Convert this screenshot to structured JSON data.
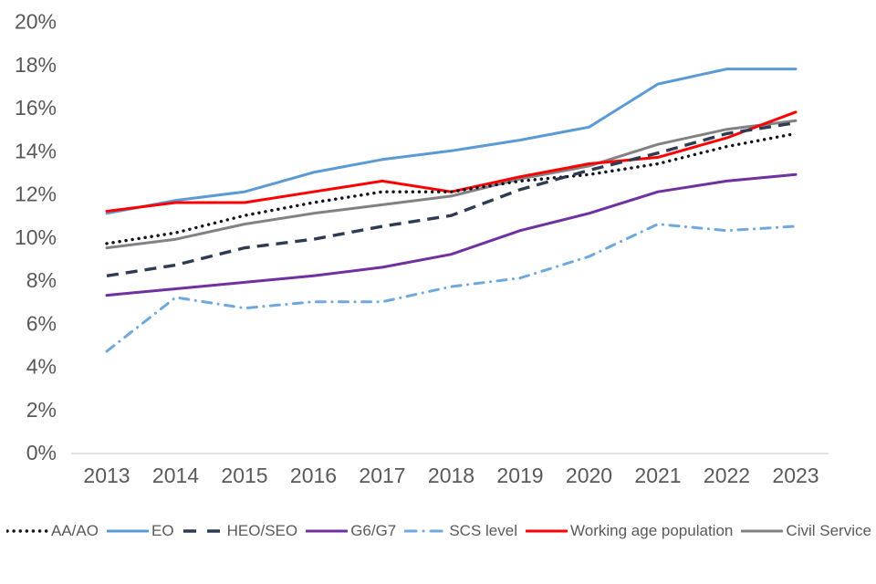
{
  "chart_data": {
    "type": "line",
    "title": "",
    "xlabel": "",
    "ylabel": "",
    "grid": "off",
    "legend_position": "bottom",
    "axis_line_color": "#d9d9d9",
    "tick_label_color": "#595959",
    "background_color": "#ffffff",
    "categories": [
      "2013",
      "2014",
      "2015",
      "2016",
      "2017",
      "2018",
      "2019",
      "2020",
      "2021",
      "2022",
      "2023"
    ],
    "y_axis": {
      "min": 0,
      "max": 20,
      "tick_step": 2,
      "tick_labels": [
        "0%",
        "2%",
        "4%",
        "6%",
        "8%",
        "10%",
        "12%",
        "14%",
        "16%",
        "18%",
        "20%"
      ]
    },
    "series": [
      {
        "name": "AA/AO",
        "color": "#121220",
        "line_style": "dotted",
        "values": [
          9.7,
          10.2,
          11.0,
          11.6,
          12.1,
          12.1,
          12.6,
          12.9,
          13.4,
          14.2,
          14.8
        ]
      },
      {
        "name": "EO",
        "color": "#5b9bd5",
        "line_style": "solid",
        "values": [
          11.1,
          11.7,
          12.1,
          13.0,
          13.6,
          14.0,
          14.5,
          15.1,
          17.1,
          17.8,
          17.8
        ]
      },
      {
        "name": "HEO/SEO",
        "color": "#2f3b52",
        "line_style": "dashed",
        "values": [
          8.2,
          8.7,
          9.5,
          9.9,
          10.5,
          11.0,
          12.2,
          13.1,
          13.9,
          14.8,
          15.3
        ]
      },
      {
        "name": "G6/G7",
        "color": "#7030a0",
        "line_style": "solid",
        "values": [
          7.3,
          7.6,
          7.9,
          8.2,
          8.6,
          9.2,
          10.3,
          11.1,
          12.1,
          12.6,
          12.9
        ]
      },
      {
        "name": "SCS level",
        "color": "#6fa8dc",
        "line_style": "dashdot",
        "values": [
          4.7,
          7.2,
          6.7,
          7.0,
          7.0,
          7.7,
          8.1,
          9.1,
          10.6,
          10.3,
          10.5
        ]
      },
      {
        "name": "Working age population",
        "color": "#ff0000",
        "line_style": "solid",
        "values": [
          11.2,
          11.6,
          11.6,
          12.1,
          12.6,
          12.1,
          12.8,
          13.4,
          13.7,
          14.6,
          15.8
        ]
      },
      {
        "name": "Civil Service",
        "color": "#828282",
        "line_style": "solid",
        "values": [
          9.5,
          9.9,
          10.6,
          11.1,
          11.5,
          11.9,
          12.7,
          13.3,
          14.3,
          15.0,
          15.4
        ]
      }
    ]
  }
}
